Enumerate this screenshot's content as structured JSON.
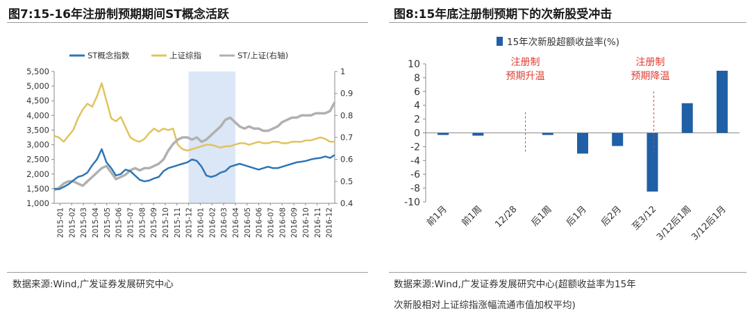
{
  "left": {
    "title": "图7:15-16年注册制预期期间ST概念活跃",
    "source": "数据来源:Wind,广发证券发展研究中心",
    "chart_data": {
      "type": "line",
      "legend": [
        "ST概念指数",
        "上证综指",
        "ST/上证(右轴)"
      ],
      "series_colors": [
        "#2e75b6",
        "#e1c35b",
        "#b0b0b0"
      ],
      "shaded_region": [
        "2015-12",
        "2016-04"
      ],
      "x_labels": [
        "2015-01",
        "2015-02",
        "2015-03",
        "2015-04",
        "2015-05",
        "2015-06",
        "2015-07",
        "2015-08",
        "2015-09",
        "2015-10",
        "2015-11",
        "2015-12",
        "2016-01",
        "2016-02",
        "2016-03",
        "2016-04",
        "2016-05",
        "2016-06",
        "2016-07",
        "2016-08",
        "2016-09",
        "2016-10",
        "2016-11",
        "2016-12"
      ],
      "y_left": {
        "ticks": [
          "1,000",
          "1,500",
          "2,000",
          "2,500",
          "3,000",
          "3,500",
          "4,000",
          "4,500",
          "5,000",
          "5,500"
        ],
        "lim": [
          1000,
          5500
        ]
      },
      "y_right": {
        "ticks": [
          "0.4",
          "0.5",
          "0.6",
          "0.7",
          "0.8",
          "0.9",
          "1"
        ],
        "lim": [
          0.4,
          1.0
        ]
      },
      "series": [
        {
          "name": "ST概念指数",
          "axis": "left",
          "values": [
            1500,
            1480,
            1560,
            1650,
            1780,
            1900,
            1950,
            2050,
            2300,
            2500,
            2850,
            2400,
            2200,
            1950,
            2000,
            2150,
            2100,
            1950,
            1800,
            1750,
            1780,
            1850,
            1900,
            2100,
            2200,
            2250,
            2300,
            2350,
            2400,
            2500,
            2450,
            2250,
            1950,
            1900,
            1950,
            2050,
            2100,
            2250,
            2300,
            2350,
            2300,
            2250,
            2200,
            2150,
            2200,
            2250,
            2200,
            2200,
            2250,
            2300,
            2350,
            2400,
            2420,
            2450,
            2500,
            2530,
            2550,
            2600,
            2550,
            2650
          ]
        },
        {
          "name": "上证综指",
          "axis": "left",
          "values": [
            3300,
            3250,
            3100,
            3300,
            3500,
            3900,
            4200,
            4400,
            4300,
            4650,
            5100,
            4500,
            3900,
            3800,
            3950,
            3600,
            3250,
            3150,
            3100,
            3200,
            3400,
            3550,
            3450,
            3550,
            3500,
            3550,
            3000,
            2850,
            2800,
            2850,
            2900,
            2950,
            3000,
            3000,
            2950,
            2900,
            2950,
            2950,
            3000,
            3050,
            3050,
            3000,
            3050,
            3100,
            3050,
            3050,
            3100,
            3100,
            3050,
            3050,
            3100,
            3100,
            3100,
            3150,
            3150,
            3200,
            3250,
            3200,
            3100,
            3100
          ]
        },
        {
          "name": "ST/上证(右轴)",
          "axis": "right",
          "values": [
            0.46,
            0.47,
            0.49,
            0.5,
            0.5,
            0.49,
            0.48,
            0.5,
            0.52,
            0.54,
            0.56,
            0.57,
            0.54,
            0.51,
            0.52,
            0.53,
            0.55,
            0.56,
            0.55,
            0.56,
            0.56,
            0.57,
            0.58,
            0.6,
            0.64,
            0.67,
            0.69,
            0.7,
            0.7,
            0.69,
            0.7,
            0.68,
            0.69,
            0.71,
            0.73,
            0.75,
            0.78,
            0.79,
            0.77,
            0.75,
            0.74,
            0.75,
            0.74,
            0.74,
            0.73,
            0.73,
            0.74,
            0.75,
            0.77,
            0.78,
            0.79,
            0.79,
            0.8,
            0.8,
            0.8,
            0.81,
            0.81,
            0.81,
            0.82,
            0.86
          ]
        }
      ]
    }
  },
  "right": {
    "title": "图8:15年底注册制预期下的次新股受冲击",
    "source_line1": "数据来源:Wind,广发证券发展研究中心(超额收益率为15年",
    "source_line2": "次新股相对上证综指涨幅流通市值加权平均)",
    "chart_data": {
      "type": "bar",
      "legend": "15年次新股超额收益率(%)",
      "bar_color": "#1f5fa6",
      "categories": [
        "前1月",
        "前1周",
        "12/28",
        "后1周",
        "后1月",
        "后2月",
        "至3/12",
        "3/12后1周",
        "3/12后1月"
      ],
      "values": [
        -0.3,
        -0.4,
        0.0,
        -0.3,
        -3.0,
        -1.9,
        -8.5,
        4.3,
        9.0
      ],
      "y_ticks": [
        "10",
        "8",
        "6",
        "4",
        "2",
        "0",
        "-2",
        "-4",
        "-6",
        "-8",
        "-10"
      ],
      "ylim": [
        -10,
        10
      ],
      "annotations": [
        {
          "lines": [
            "注册制",
            "预期升温"
          ],
          "color": "#e03c31"
        },
        {
          "lines": [
            "注册制",
            "预期降温"
          ],
          "color": "#e03c31"
        }
      ]
    }
  }
}
